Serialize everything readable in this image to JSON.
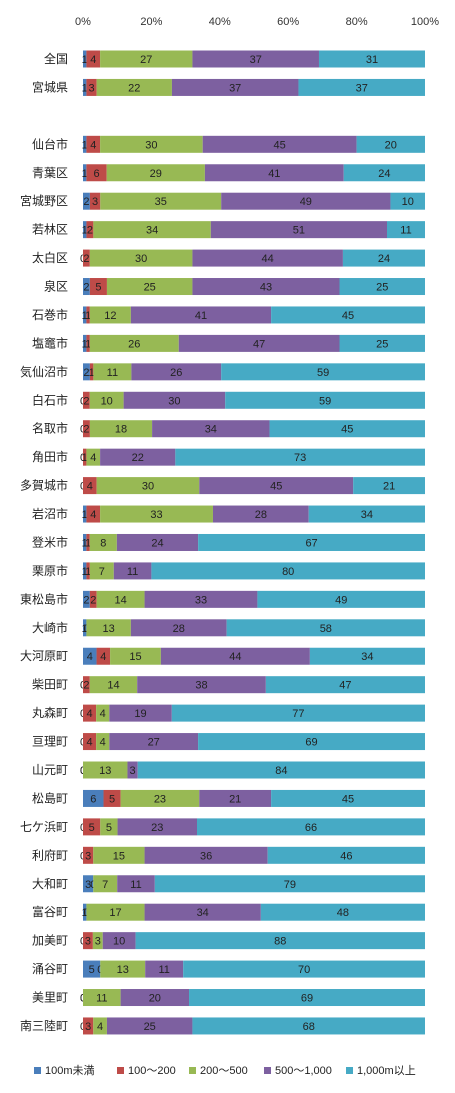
{
  "chart_data": {
    "type": "bar",
    "orientation": "horizontal",
    "stacked": "percent",
    "xlim": [
      0,
      100
    ],
    "xticks": [
      "0%",
      "20%",
      "40%",
      "60%",
      "80%",
      "100%"
    ],
    "grid": false,
    "legend_position": "bottom",
    "categories": [
      "全国",
      "宮城県",
      "",
      "仙台市",
      "青葉区",
      "宮城野区",
      "若林区",
      "太白区",
      "泉区",
      "石巻市",
      "塩竈市",
      "気仙沼市",
      "白石市",
      "名取市",
      "角田市",
      "多賀城市",
      "岩沼市",
      "登米市",
      "栗原市",
      "東松島市",
      "大崎市",
      "大河原町",
      "柴田町",
      "丸森町",
      "亘理町",
      "山元町",
      "松島町",
      "七ケ浜町",
      "利府町",
      "大和町",
      "富谷町",
      "加美町",
      "涌谷町",
      "美里町",
      "南三陸町"
    ],
    "series": [
      {
        "name": "100m未満",
        "color": "#4a7ebb",
        "values": [
          1,
          1,
          null,
          1,
          1,
          2,
          1,
          0,
          2,
          1,
          1,
          2,
          0,
          0,
          0,
          0,
          1,
          1,
          1,
          2,
          1,
          4,
          0,
          0,
          0,
          0,
          6,
          0,
          0,
          3,
          1,
          0,
          5,
          0,
          0
        ]
      },
      {
        "name": "100～200",
        "color": "#be4b48",
        "values": [
          4,
          3,
          null,
          4,
          6,
          3,
          2,
          2,
          5,
          1,
          1,
          1,
          2,
          2,
          1,
          4,
          4,
          1,
          1,
          2,
          0,
          4,
          2,
          4,
          4,
          0,
          5,
          5,
          3,
          0,
          0,
          3,
          0,
          0,
          3
        ]
      },
      {
        "name": "200～500",
        "color": "#98b954",
        "values": [
          27,
          22,
          null,
          30,
          29,
          35,
          34,
          30,
          25,
          12,
          26,
          11,
          10,
          18,
          4,
          30,
          33,
          8,
          7,
          14,
          13,
          15,
          14,
          4,
          4,
          13,
          23,
          5,
          15,
          7,
          17,
          3,
          13,
          11,
          4
        ]
      },
      {
        "name": "500～1,000",
        "color": "#7d60a0",
        "values": [
          37,
          37,
          null,
          45,
          41,
          49,
          51,
          44,
          43,
          41,
          47,
          26,
          30,
          34,
          22,
          45,
          28,
          24,
          11,
          33,
          28,
          44,
          38,
          19,
          27,
          3,
          21,
          23,
          36,
          11,
          34,
          10,
          11,
          20,
          25
        ]
      },
      {
        "name": "1,000m以上",
        "color": "#46aac5",
        "values": [
          31,
          37,
          null,
          20,
          24,
          10,
          11,
          24,
          25,
          45,
          25,
          59,
          59,
          45,
          73,
          21,
          34,
          67,
          80,
          49,
          58,
          34,
          47,
          77,
          69,
          84,
          45,
          66,
          46,
          79,
          48,
          88,
          70,
          69,
          68
        ]
      }
    ]
  }
}
